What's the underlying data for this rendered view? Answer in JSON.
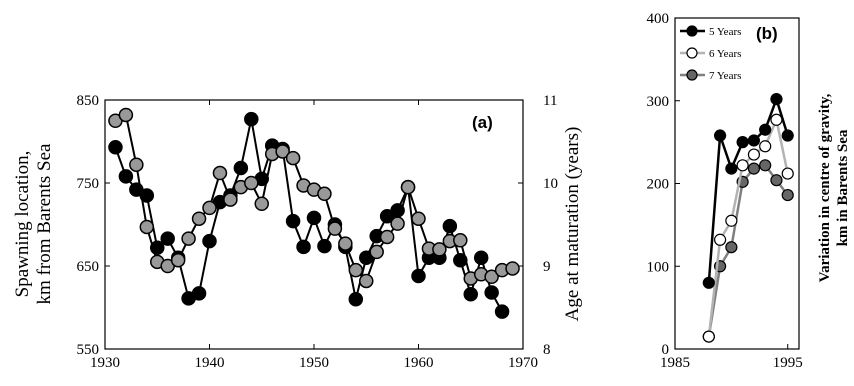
{
  "chart_data": [
    {
      "type": "line",
      "panel_label": "(a)",
      "ylabel_left": [
        "Spawning location,",
        "km from Barents Sea"
      ],
      "ylabel_right": "Age at maturation (years)",
      "xlim": [
        1930,
        1970
      ],
      "ylim_left": [
        550,
        850
      ],
      "ylim_right": [
        8,
        11
      ],
      "x_ticks": [
        "1930",
        "1940",
        "1950",
        "1960",
        "1970"
      ],
      "y_ticks_left": [
        "550",
        "650",
        "750",
        "850"
      ],
      "y_ticks_right": [
        "8",
        "9",
        "10",
        "11"
      ],
      "series": [
        {
          "axis": "left",
          "color": "#000000",
          "x": [
            1931,
            1932,
            1933,
            1934,
            1935,
            1936,
            1937,
            1938,
            1939,
            1940,
            1941,
            1942,
            1943,
            1944,
            1945,
            1946,
            1947,
            1948,
            1949,
            1950,
            1951,
            1952,
            1953,
            1954,
            1955,
            1956,
            1957,
            1958,
            1959,
            1960,
            1961,
            1962,
            1963,
            1964,
            1965,
            1966,
            1967,
            1968
          ],
          "values": [
            793,
            758,
            742,
            735,
            672,
            683,
            660,
            611,
            617,
            680,
            727,
            735,
            768,
            827,
            755,
            795,
            791,
            704,
            673,
            708,
            674,
            700,
            673,
            610,
            660,
            686,
            710,
            717,
            745,
            638,
            660,
            660,
            698,
            657,
            616,
            660,
            618,
            595
          ]
        },
        {
          "axis": "right",
          "color": "#999999",
          "x": [
            1931,
            1932,
            1933,
            1934,
            1935,
            1936,
            1937,
            1938,
            1939,
            1940,
            1941,
            1942,
            1943,
            1944,
            1945,
            1946,
            1947,
            1948,
            1949,
            1950,
            1951,
            1952,
            1953,
            1954,
            1955,
            1956,
            1957,
            1958,
            1959,
            1960,
            1961,
            1962,
            1963,
            1964,
            1965,
            1966,
            1967,
            1968,
            1969
          ],
          "values": [
            10.75,
            10.82,
            10.22,
            9.47,
            9.05,
            9.0,
            9.07,
            9.33,
            9.57,
            9.7,
            10.12,
            9.8,
            9.95,
            10.0,
            9.75,
            10.35,
            10.38,
            10.3,
            9.97,
            9.92,
            9.87,
            9.45,
            9.27,
            8.95,
            8.82,
            9.17,
            9.35,
            9.51,
            9.95,
            9.57,
            9.21,
            9.2,
            9.3,
            9.31,
            8.85,
            8.9,
            8.87,
            8.95,
            8.97
          ]
        }
      ]
    },
    {
      "type": "line",
      "panel_label": "(b)",
      "ylabel": [
        "Variation in centre of gravity,",
        "km in Barents Sea"
      ],
      "xlim": [
        1985,
        1996
      ],
      "ylim": [
        0,
        400
      ],
      "x_ticks": [
        "1985",
        "1995"
      ],
      "y_ticks": [
        "0",
        "100",
        "200",
        "300",
        "400"
      ],
      "legend_position": "top-left",
      "series": [
        {
          "name": "5 Years",
          "color": "#000000",
          "marker": "#000000",
          "x": [
            1988,
            1989,
            1990,
            1991,
            1992,
            1993,
            1994,
            1995
          ],
          "values": [
            80,
            258,
            218,
            250,
            252,
            265,
            302,
            258
          ]
        },
        {
          "name": "6 Years",
          "color": "#b3b3b3",
          "marker": "#ffffff",
          "x": [
            1988,
            1989,
            1990,
            1991,
            1992,
            1993,
            1994,
            1995
          ],
          "values": [
            15,
            132,
            155,
            222,
            235,
            245,
            277,
            212
          ]
        },
        {
          "name": "7 Years",
          "color": "#808080",
          "marker": "#666666",
          "x": [
            1988,
            1989,
            1990,
            1991,
            1992,
            1993,
            1994,
            1995
          ],
          "values": [
            15,
            100,
            123,
            202,
            218,
            222,
            204,
            186
          ]
        }
      ]
    }
  ]
}
